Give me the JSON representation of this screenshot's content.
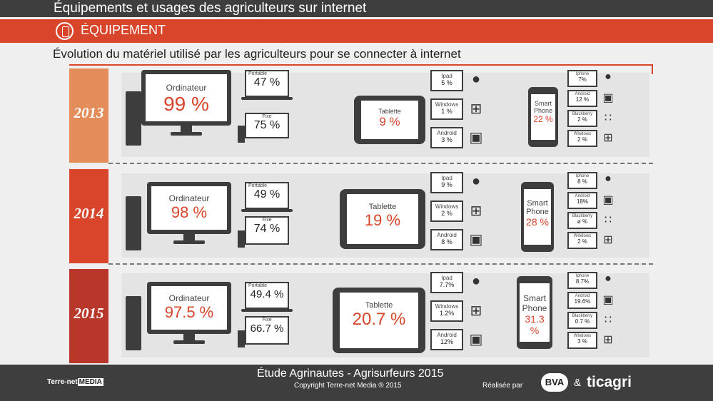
{
  "header": {
    "title": "Équipements et usages des agriculteurs sur internet"
  },
  "section": {
    "title": "ÉQUIPEMENT",
    "icon": "tablet-icon"
  },
  "subtitle": "Évolution du matériel utilisé par les agriculteurs pour se connecter à internet",
  "colors": {
    "accent": "#d9452b",
    "dark": "#3e3e3e",
    "year2013": "#e58c5b",
    "year2014": "#d9452b",
    "year2015": "#b8372a"
  },
  "years": [
    {
      "year": "2013",
      "ordinateur": {
        "label": "Ordinateur",
        "value": "99 %"
      },
      "portable": {
        "label": "Portable",
        "value": "47 %"
      },
      "fixe": {
        "label": "Fixe",
        "value": "75 %"
      },
      "tablette": {
        "label": "Tablette",
        "value": "9 %"
      },
      "tablet_os": [
        {
          "label": "Ipad",
          "value": "5 %",
          "icon": "apple-icon"
        },
        {
          "label": "Windows",
          "value": "1 %",
          "icon": "windows-icon"
        },
        {
          "label": "Android",
          "value": "3 %",
          "icon": "android-icon"
        }
      ],
      "smartphone": {
        "label1": "Smart",
        "label2": "Phone",
        "value": "22 %"
      },
      "phone_os": [
        {
          "label": "Iphone",
          "value": "7%",
          "icon": "apple-icon"
        },
        {
          "label": "Android",
          "value": "12 %",
          "icon": "android-icon"
        },
        {
          "label": "Blackberry",
          "value": "2 %",
          "icon": "blackberry-icon"
        },
        {
          "label": "Windows",
          "value": "2 %",
          "icon": "windows-icon"
        }
      ]
    },
    {
      "year": "2014",
      "ordinateur": {
        "label": "Ordinateur",
        "value": "98 %"
      },
      "portable": {
        "label": "Portable",
        "value": "49 %"
      },
      "fixe": {
        "label": "Fixe",
        "value": "74 %"
      },
      "tablette": {
        "label": "Tablette",
        "value": "19 %"
      },
      "tablet_os": [
        {
          "label": "Ipad",
          "value": "9 %",
          "icon": "apple-icon"
        },
        {
          "label": "Windows",
          "value": "2 %",
          "icon": "windows-icon"
        },
        {
          "label": "Android",
          "value": "8 %",
          "icon": "android-icon"
        }
      ],
      "smartphone": {
        "label1": "Smart",
        "label2": "Phone",
        "value": "28 %"
      },
      "phone_os": [
        {
          "label": "Iphone",
          "value": "8 %",
          "icon": "apple-icon"
        },
        {
          "label": "Android",
          "value": "18%",
          "icon": "android-icon"
        },
        {
          "label": "Blackberry",
          "value": "ø %",
          "icon": "blackberry-icon"
        },
        {
          "label": "Windows",
          "value": "2 %",
          "icon": "windows-icon"
        }
      ]
    },
    {
      "year": "2015",
      "ordinateur": {
        "label": "Ordinateur",
        "value": "97.5 %"
      },
      "portable": {
        "label": "Portable",
        "value": "49.4 %"
      },
      "fixe": {
        "label": "Fixe",
        "value": "66.7 %"
      },
      "tablette": {
        "label": "Tablette",
        "value": "20.7 %"
      },
      "tablet_os": [
        {
          "label": "Ipad",
          "value": "7.7%",
          "icon": "apple-icon"
        },
        {
          "label": "Windows",
          "value": "1.2%",
          "icon": "windows-icon"
        },
        {
          "label": "Android",
          "value": "12%",
          "icon": "android-icon"
        }
      ],
      "smartphone": {
        "label1": "Smart",
        "label2": "Phone",
        "value": "31.3 %"
      },
      "phone_os": [
        {
          "label": "Iphone",
          "value": "8.7%",
          "icon": "apple-icon"
        },
        {
          "label": "Android",
          "value": "19.6%",
          "icon": "android-icon"
        },
        {
          "label": "Blackberry",
          "value": "0.7 %",
          "icon": "blackberry-icon"
        },
        {
          "label": "Windows",
          "value": "3 %",
          "icon": "windows-icon"
        }
      ]
    }
  ],
  "footer": {
    "study": "Étude Agrinautes - Agrisurfeurs 2015",
    "copyright": "Copyright Terre-net Media ® 2015",
    "logo_left": "Terre-net",
    "logo_media": "MEDIA",
    "realisee": "Réalisée par",
    "bva": "BVA",
    "amp": "&",
    "ticagri": "ticagri"
  }
}
